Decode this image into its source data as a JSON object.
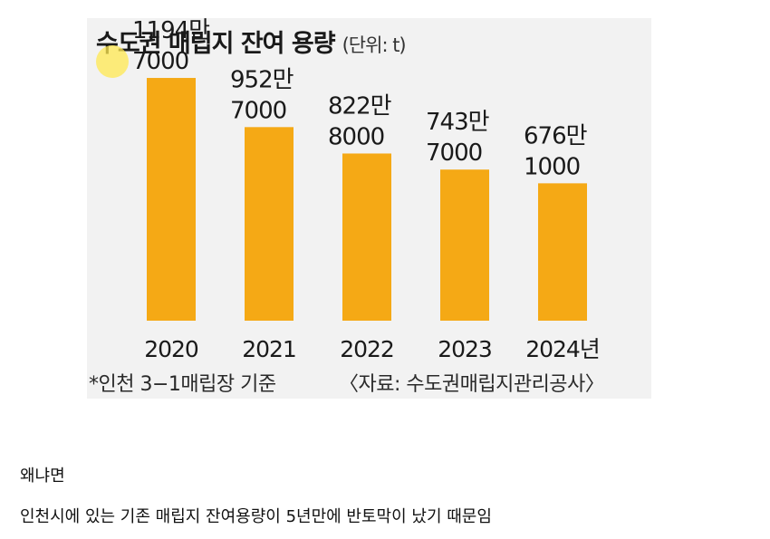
{
  "chart_data": {
    "type": "bar",
    "title": "수도권 매립지 잔여 용량",
    "unit": "(단위: t)",
    "categories": [
      "2020",
      "2021",
      "2022",
      "2023",
      "2024년"
    ],
    "values": [
      11947000,
      9527000,
      8228000,
      7437000,
      6761000
    ],
    "value_labels": [
      [
        "1194만",
        "7000"
      ],
      [
        "952만",
        "7000"
      ],
      [
        "822만",
        "8000"
      ],
      [
        "743만",
        "7000"
      ],
      [
        "676만",
        "1000"
      ]
    ],
    "ylim": [
      0,
      14000000
    ],
    "grid": false,
    "bar_color": "#f5a915",
    "footnote": "*인천 3−1매립장 기준",
    "source": "〈자료: 수도권매립지관리공사〉"
  },
  "caption": {
    "line1": "왜냐면",
    "line2": "인천시에 있는 기존 매립지 잔여용량이 5년만에 반토막이 났기 때문임"
  }
}
